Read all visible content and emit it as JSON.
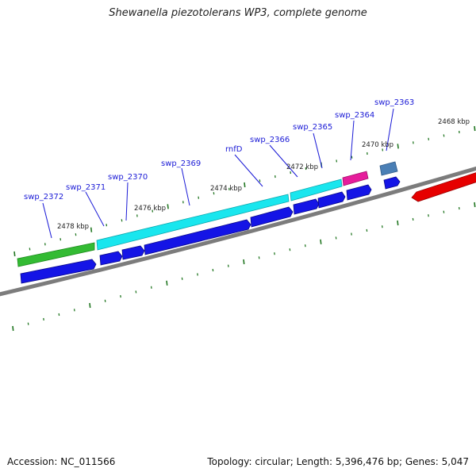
{
  "title": "Shewanella piezotolerans WP3, complete genome",
  "accession": "Accession: NC_011566",
  "topology": "Topology: circular; Length: 5,396,476 bp; Genes: 5,047",
  "colors": {
    "backbone": "#808080",
    "forward_gene": "#33bb33",
    "cds_cyan": "#19e6ee",
    "cds_blue": "#1414e6",
    "magenta_gene": "#e61c9c",
    "steel_gene": "#4a7fb5",
    "red_gene": "#e60000",
    "tick": "#227722",
    "label": "#1a1ad6"
  },
  "tick_labels": [
    "2478 kbp",
    "2476 kbp",
    "2474 kbp",
    "2472 kbp",
    "2470 kbp",
    "2468 kbp"
  ],
  "gene_labels": [
    "swp_2372",
    "swp_2371",
    "swp_2370",
    "swp_2369",
    "rnfD",
    "swp_2366",
    "swp_2365",
    "swp_2364",
    "swp_2363"
  ]
}
